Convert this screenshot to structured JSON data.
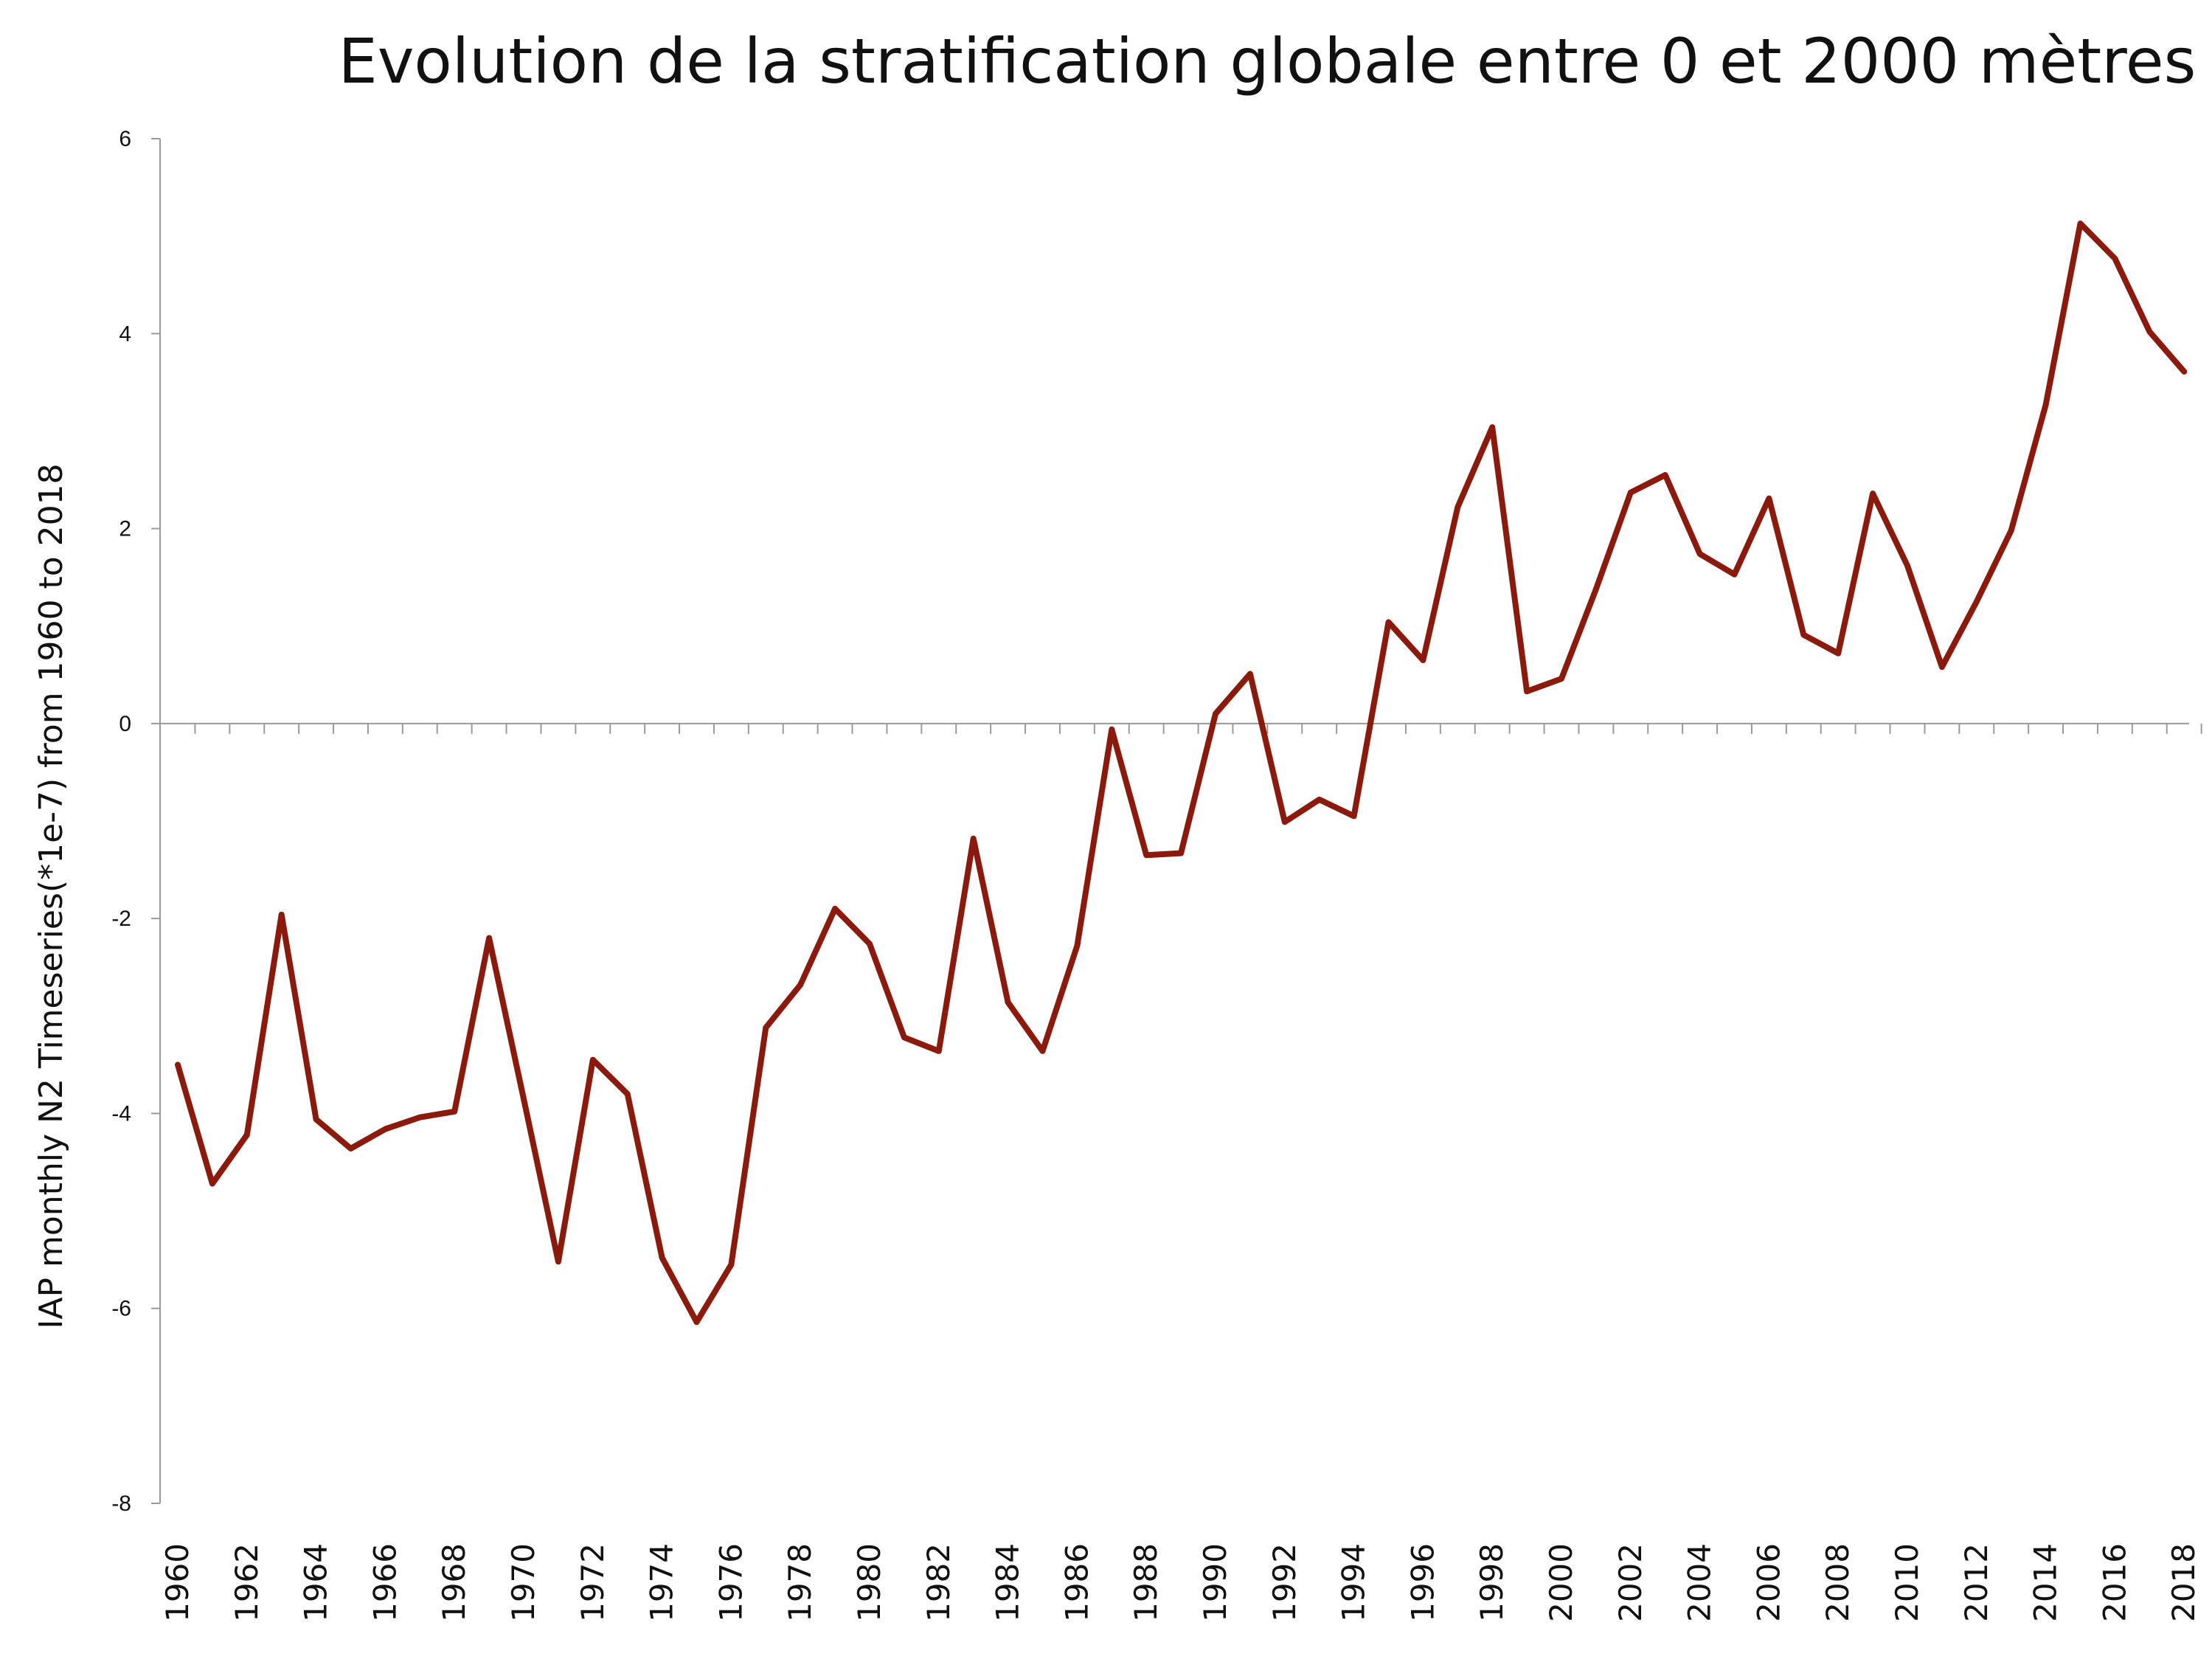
{
  "chart_data": {
    "type": "line",
    "title": "Evolution de la stratification globale entre 0 et 2000 mètres",
    "xlabel": "",
    "ylabel": "IAP monthly N2 Timeseries(*1e-7) from 1960 to 2018",
    "ylim": [
      -8,
      6
    ],
    "yticks": [
      6,
      4,
      2,
      0,
      -2,
      -4,
      -6,
      -8
    ],
    "ytick_labels": [
      "6",
      "4",
      "2",
      "0",
      "-2",
      "-4",
      "-6",
      "-8"
    ],
    "xlim": [
      1960,
      2018
    ],
    "xtick_labels": [
      "1960",
      "1962",
      "1964",
      "1966",
      "1968",
      "1970",
      "1972",
      "1974",
      "1976",
      "1978",
      "1980",
      "1982",
      "1984",
      "1986",
      "1988",
      "1990",
      "1992",
      "1994",
      "1996",
      "1998",
      "2000",
      "2002",
      "2004",
      "2006",
      "2008",
      "2010",
      "2012",
      "2014",
      "2016",
      "2018"
    ],
    "grid": false,
    "series": [
      {
        "name": "IAP monthly N2",
        "color": "#8b1a0c",
        "x": [
          1960,
          1961,
          1962,
          1963,
          1964,
          1965,
          1966,
          1967,
          1968,
          1969,
          1970,
          1971,
          1972,
          1973,
          1974,
          1975,
          1976,
          1977,
          1978,
          1979,
          1980,
          1981,
          1982,
          1983,
          1984,
          1985,
          1986,
          1987,
          1988,
          1989,
          1990,
          1991,
          1992,
          1993,
          1994,
          1995,
          1996,
          1997,
          1998,
          1999,
          2000,
          2001,
          2002,
          2003,
          2004,
          2005,
          2006,
          2007,
          2008,
          2009,
          2010,
          2011,
          2012,
          2013,
          2014,
          2015,
          2016,
          2017,
          2018
        ],
        "values": [
          -3.5,
          -4.72,
          -4.22,
          -1.96,
          -4.06,
          -4.36,
          -4.16,
          -4.04,
          -3.98,
          -2.2,
          -3.85,
          -5.52,
          -3.45,
          -3.8,
          -5.48,
          -6.14,
          -5.55,
          -3.12,
          -2.68,
          -1.9,
          -2.26,
          -3.22,
          -3.36,
          -1.18,
          -2.86,
          -3.36,
          -2.28,
          -0.06,
          -1.35,
          -1.33,
          0.1,
          0.51,
          -1.01,
          -0.78,
          -0.95,
          1.04,
          0.65,
          2.22,
          3.04,
          0.33,
          0.46,
          1.38,
          2.37,
          2.55,
          1.74,
          1.53,
          2.31,
          0.91,
          0.72,
          2.36,
          1.62,
          0.58,
          1.25,
          1.98,
          3.27,
          5.13,
          4.77,
          4.02,
          3.61
        ]
      }
    ]
  }
}
